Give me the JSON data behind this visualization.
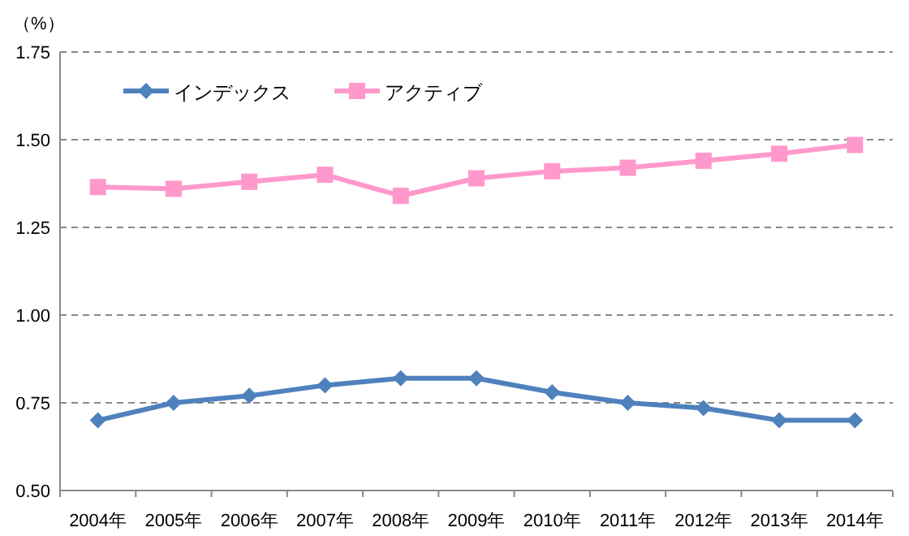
{
  "chart_data": {
    "type": "line",
    "ylabel": "（%）",
    "categories": [
      "2004年",
      "2005年",
      "2006年",
      "2007年",
      "2008年",
      "2009年",
      "2010年",
      "2011年",
      "2012年",
      "2013年",
      "2014年"
    ],
    "series": [
      {
        "name": "インデックス",
        "color": "#4f81bd",
        "marker": "diamond",
        "values": [
          0.7,
          0.75,
          0.77,
          0.8,
          0.82,
          0.82,
          0.78,
          0.75,
          0.735,
          0.7,
          0.7
        ]
      },
      {
        "name": "アクティブ",
        "color": "#ff99cc",
        "marker": "square",
        "values": [
          1.365,
          1.36,
          1.38,
          1.4,
          1.34,
          1.39,
          1.41,
          1.42,
          1.44,
          1.46,
          1.485
        ]
      }
    ],
    "ylim": [
      0.5,
      1.75
    ],
    "yticks": [
      {
        "value": 0.5,
        "label": "0.50"
      },
      {
        "value": 0.75,
        "label": "0.75"
      },
      {
        "value": 1.0,
        "label": "1.00"
      },
      {
        "value": 1.25,
        "label": "1.25"
      },
      {
        "value": 1.5,
        "label": "1.50"
      },
      {
        "value": 1.75,
        "label": "1.75"
      }
    ],
    "grid": "y",
    "legend": "top left",
    "line_style": "solid"
  }
}
